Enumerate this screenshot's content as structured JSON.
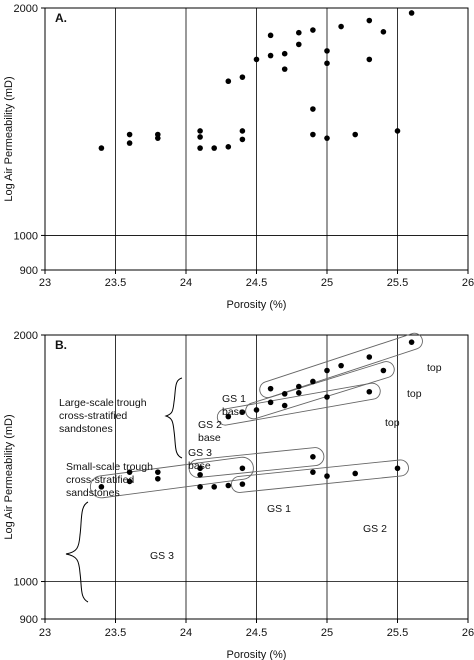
{
  "chart_data": [
    {
      "type": "scatter",
      "panel_label": "A.",
      "xlabel": "Porosity (%)",
      "ylabel": "Log Air Permeability (mD)",
      "xlim": [
        23,
        26
      ],
      "ylim": [
        900,
        2000
      ],
      "yscale": "log",
      "xticks": [
        "23",
        "23.5",
        "24",
        "24.5",
        "25",
        "25.5",
        "26"
      ],
      "yticks": [
        "900",
        "1000",
        "2000"
      ],
      "grid": true,
      "points": [
        [
          23.4,
          1305
        ],
        [
          23.6,
          1360
        ],
        [
          23.6,
          1325
        ],
        [
          23.8,
          1360
        ],
        [
          23.8,
          1345
        ],
        [
          24.1,
          1375
        ],
        [
          24.1,
          1350
        ],
        [
          24.1,
          1305
        ],
        [
          24.2,
          1305
        ],
        [
          24.3,
          1310
        ],
        [
          24.4,
          1375
        ],
        [
          24.4,
          1340
        ],
        [
          24.3,
          1600
        ],
        [
          24.4,
          1620
        ],
        [
          24.5,
          1710
        ],
        [
          24.6,
          1730
        ],
        [
          24.6,
          1840
        ],
        [
          24.7,
          1740
        ],
        [
          24.7,
          1660
        ],
        [
          24.8,
          1790
        ],
        [
          24.8,
          1855
        ],
        [
          24.9,
          1870
        ],
        [
          24.9,
          1470
        ],
        [
          24.9,
          1360
        ],
        [
          25.0,
          1755
        ],
        [
          25.0,
          1690
        ],
        [
          25.0,
          1345
        ],
        [
          25.1,
          1890
        ],
        [
          25.2,
          1360
        ],
        [
          25.3,
          1925
        ],
        [
          25.3,
          1710
        ],
        [
          25.4,
          1860
        ],
        [
          25.5,
          1375
        ],
        [
          25.6,
          1970
        ]
      ]
    },
    {
      "type": "scatter",
      "panel_label": "B.",
      "xlabel": "Porosity (%)",
      "ylabel": "Log Air Permeability (mD)",
      "xlim": [
        23,
        26
      ],
      "ylim": [
        900,
        2000
      ],
      "yscale": "log",
      "xticks": [
        "23",
        "23.5",
        "24",
        "24.5",
        "25",
        "25.5",
        "26"
      ],
      "yticks": [
        "900",
        "1000",
        "2000"
      ],
      "grid": true,
      "points": [
        [
          23.4,
          1305
        ],
        [
          23.6,
          1360
        ],
        [
          23.6,
          1325
        ],
        [
          23.8,
          1360
        ],
        [
          23.8,
          1335
        ],
        [
          24.1,
          1375
        ],
        [
          24.1,
          1350
        ],
        [
          24.1,
          1305
        ],
        [
          24.2,
          1305
        ],
        [
          24.3,
          1310
        ],
        [
          24.4,
          1375
        ],
        [
          24.4,
          1315
        ],
        [
          24.3,
          1590
        ],
        [
          24.4,
          1610
        ],
        [
          24.5,
          1620
        ],
        [
          24.6,
          1720
        ],
        [
          24.6,
          1655
        ],
        [
          24.7,
          1695
        ],
        [
          24.7,
          1640
        ],
        [
          24.8,
          1730
        ],
        [
          24.8,
          1700
        ],
        [
          24.9,
          1755
        ],
        [
          24.9,
          1420
        ],
        [
          24.9,
          1360
        ],
        [
          25.0,
          1810
        ],
        [
          25.0,
          1680
        ],
        [
          25.0,
          1345
        ],
        [
          25.1,
          1835
        ],
        [
          25.2,
          1355
        ],
        [
          25.3,
          1880
        ],
        [
          25.3,
          1705
        ],
        [
          25.4,
          1810
        ],
        [
          25.5,
          1375
        ],
        [
          25.6,
          1960
        ]
      ],
      "annotations": {
        "large_scale": [
          "Large-scale trough",
          "cross-stratified",
          "sandstones"
        ],
        "small_scale": [
          "Small-scale trough",
          "cross-stratified",
          "sandstones"
        ],
        "gs1_base": [
          "GS 1",
          "base"
        ],
        "gs2_base": [
          "GS 2",
          "base"
        ],
        "gs3_base": [
          "GS 3",
          "base"
        ],
        "top": "top",
        "gs1": "GS 1",
        "gs2": "GS 2",
        "gs3": "GS 3"
      }
    }
  ]
}
